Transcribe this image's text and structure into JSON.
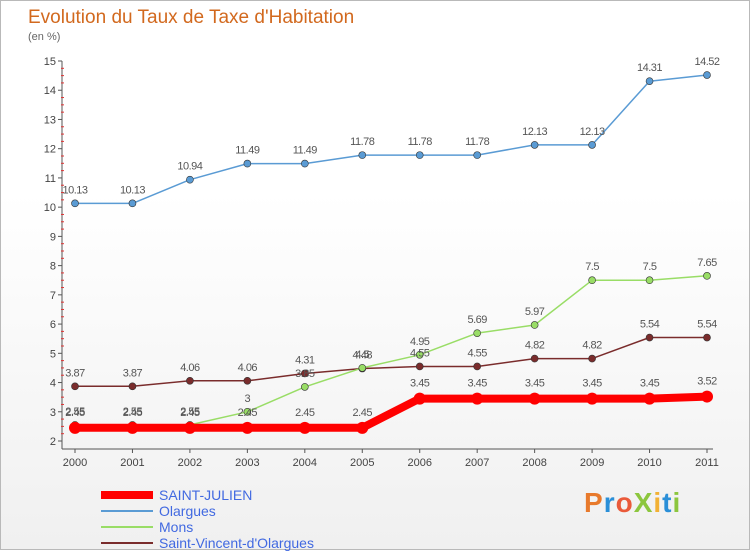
{
  "chart_data": {
    "type": "line",
    "title": "Evolution du Taux de Taxe d'Habitation",
    "subtitle": "(en %)",
    "categories": [
      "2000",
      "2001",
      "2002",
      "2003",
      "2004",
      "2005",
      "2006",
      "2007",
      "2008",
      "2009",
      "2010",
      "2011"
    ],
    "ylim": [
      2,
      15
    ],
    "yticks": [
      2,
      3,
      4,
      5,
      6,
      7,
      8,
      9,
      10,
      11,
      12,
      13,
      14,
      15
    ],
    "grid": false,
    "legend_position": "bottom-left",
    "series": [
      {
        "name": "SAINT-JULIEN",
        "color": "#ff0000",
        "values": [
          2.45,
          2.45,
          2.45,
          2.45,
          2.45,
          2.45,
          3.45,
          3.45,
          3.45,
          3.45,
          3.45,
          3.52
        ],
        "labels": [
          "2.45",
          "2.45",
          "2.45",
          "2.45",
          "2.45",
          "2.45",
          "3.45",
          "3.45",
          "3.45",
          "3.45",
          "3.45",
          "3.52"
        ]
      },
      {
        "name": "Olargues",
        "color": "#5a9bd4",
        "values": [
          10.13,
          10.13,
          10.94,
          11.49,
          11.49,
          11.78,
          11.78,
          11.78,
          12.13,
          12.13,
          14.31,
          14.52
        ],
        "labels": [
          "10.13",
          "10.13",
          "10.94",
          "11.49",
          "11.49",
          "11.78",
          "11.78",
          "11.78",
          "12.13",
          "12.13",
          "14.31",
          "14.52"
        ]
      },
      {
        "name": "Mons",
        "color": "#99dd66",
        "values": [
          2.55,
          2.55,
          2.55,
          3,
          3.85,
          4.5,
          4.95,
          5.69,
          5.97,
          7.5,
          7.5,
          7.65
        ],
        "labels": [
          "2.55",
          "2.55",
          "2.55",
          "3",
          "3.85",
          "4.5",
          "4.95",
          "5.69",
          "5.97",
          "7.5",
          "7.5",
          "7.65"
        ]
      },
      {
        "name": "Saint-Vincent-d'Olargues",
        "color": "#7a2c2c",
        "values": [
          3.87,
          3.87,
          4.06,
          4.06,
          4.31,
          4.48,
          4.55,
          4.55,
          4.82,
          4.82,
          5.54,
          5.54
        ],
        "labels": [
          "3.87",
          "3.87",
          "4.06",
          "4.06",
          "4.31",
          "4.48",
          "4.55",
          "4.55",
          "4.82",
          "4.82",
          "5.54",
          "5.54"
        ]
      }
    ]
  },
  "logo": {
    "text": "ProXiti",
    "colors": [
      "#e87a2c",
      "#2a8fd8",
      "#ea5a3a",
      "#8cc63e",
      "#f2b134",
      "#2a8fd8",
      "#8cc63e"
    ]
  }
}
